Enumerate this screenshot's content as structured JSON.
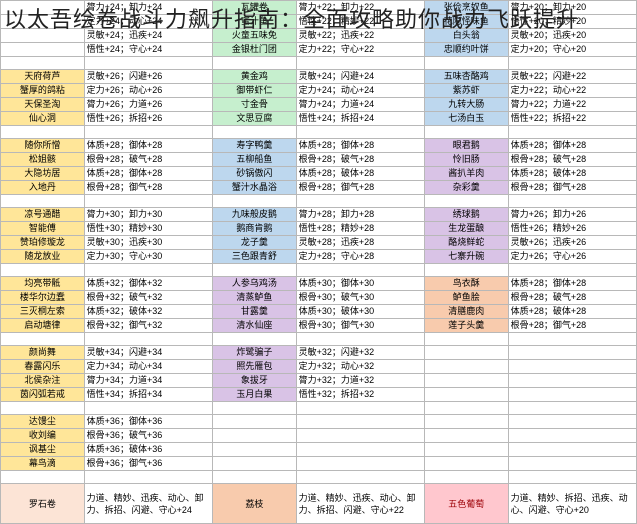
{
  "title": "以太吾绘卷战斗力飙升指南：全面攻略助你战力飞跃提升",
  "colors": {
    "yellow_label": "#ffe699",
    "green_dish": "#c6efce",
    "blue_dish": "#bdd7ee",
    "purple_dish": "#d9c3e6",
    "orange_dish": "#f8cbad",
    "pink_label": "#fce4d6",
    "red_dish": "#ffc7ce",
    "border": "#b8b8b8"
  },
  "sections": {
    "g1": {
      "labels": [
        "",
        "",
        "",
        ""
      ],
      "stats1": [
        "膂力+24；卸力+24",
        "定力+24；动心+24",
        "灵敏+24；迅疾+24",
        "悟性+24；守心+24"
      ],
      "dishes1": [
        "瓦罐卷",
        "蜜汁鱼",
        "火童五味免",
        "金银杜门团"
      ],
      "stats2": [
        "膂力+22；卸力+22",
        "悟性+22；精妙+22",
        "灵敏+22；迅疾+22",
        "定力+22；守心+22"
      ],
      "dishes2": [
        "张俭烹奴鱼",
        "花隐怪味鱼",
        "白头翁",
        "忠顺约叶饼"
      ],
      "stats3": [
        "膂力+20；卸力+20",
        "悟性+20；精妙+20",
        "灵敏+20；迅疾+20",
        "定力+20；守心+20"
      ]
    },
    "g2": {
      "labels": [
        "天府荷芦",
        "蟹厚的鸽粘",
        "天保圣淘",
        "仙心洞"
      ],
      "stats1": [
        "灵敏+26；闪避+26",
        "定力+26；动心+26",
        "膂力+26；力道+26",
        "悟性+26；拆招+26"
      ],
      "dishes1": [
        "黄金鸡",
        "御带虾仁",
        "寸金骨",
        "文思豆腐"
      ],
      "stats2": [
        "灵敏+24；闪避+24",
        "定力+24；动心+24",
        "膂力+24；力道+24",
        "悟性+24；拆招+24"
      ],
      "dishes2": [
        "五味杏酪鸡",
        "紫苏虾",
        "九转大肠",
        "七汤白玉"
      ],
      "stats3": [
        "灵敏+22；闪避+22",
        "定力+22；动心+22",
        "膂力+22；力道+22",
        "悟性+22；拆招+22"
      ]
    },
    "g3": {
      "labels": [
        "随你所憎",
        "松姐骸",
        "大隐坊居",
        "入地丹"
      ],
      "stats1": [
        "体质+28；御体+28",
        "根骨+28；破气+28",
        "体质+28；御体+28",
        "根骨+28；御气+28"
      ],
      "dishes1": [
        "寿字鸭羹",
        "五柳船鱼",
        "砂锅傲闪",
        "蟹汁水晶浴"
      ],
      "stats2": [
        "体质+28；御体+28",
        "根骨+28；破气+28",
        "体质+28；破体+28",
        "根骨+28；御气+28"
      ],
      "dishes2": [
        "眼君鹅",
        "怜旧肠",
        "酱扒羊肉",
        "杂彩羹"
      ],
      "stats3": [
        "体质+28；御体+28",
        "根骨+28；破气+28",
        "体质+28；破体+28",
        "根骨+28；御气+28"
      ]
    },
    "g4": {
      "labels": [
        "凉号通醋",
        "智能傅",
        "赞珀修璇龙",
        "随龙放业"
      ],
      "stats1": [
        "膂力+30；卸力+30",
        "悟性+30；精妙+30",
        "灵敏+30；迅疾+30",
        "定力+30；守心+30"
      ],
      "dishes1": [
        "九味般皮鹅",
        "鹅商肯鹅",
        "龙子羹",
        "三色跟青舒"
      ],
      "stats2": [
        "膂力+28；卸力+28",
        "悟性+28；精妙+28",
        "灵敏+28；迅疾+28",
        "定力+28；守心+28"
      ],
      "dishes2": [
        "绣球鹅",
        "生龙蛋酿",
        "酪烧鲜蛇",
        "七寨升碗"
      ],
      "stats3": [
        "膂力+26；卸力+26",
        "悟性+26；精妙+26",
        "灵敏+26；迅疾+26",
        "定力+26；守心+26"
      ]
    },
    "g5": {
      "labels": [
        "均亮带骶",
        "楼华尔边蠢",
        "三灭桐左索",
        "启动塘律"
      ],
      "stats1": [
        "体质+32；御体+32",
        "根骨+32；破气+32",
        "体质+32；破体+32",
        "根骨+32；御气+32"
      ],
      "dishes1": [
        "人参乌鸡汤",
        "清蒸鲈鱼",
        "甘露羹",
        "清水仙座"
      ],
      "stats2": [
        "体质+30；御体+30",
        "根骨+30；破气+30",
        "体质+30；破体+30",
        "根骨+30；御气+30"
      ],
      "dishes2": [
        "鸟衣酥",
        "鲈鱼脍",
        "清膳鹿肉",
        "莲子头羹"
      ],
      "stats3": [
        "体质+28；御体+28",
        "根骨+28；破气+28",
        "体质+28；破体+28",
        "根骨+28；御气+28"
      ]
    },
    "g6": {
      "labels": [
        "颜尚舞",
        "春露闪乐",
        "北侯杂注",
        "茵闪弧若戒"
      ],
      "stats1": [
        "灵敏+34；闪避+34",
        "定力+34；动心+34",
        "膂力+34；力道+34",
        "悟性+34；拆招+34"
      ],
      "dishes1": [
        "炸鹭骗子",
        "照先雁包",
        "象拔牙",
        "玉月白果"
      ],
      "stats2": [
        "灵敏+32；闪避+32",
        "定力+32；动心+32",
        "膂力+32；力道+32",
        "悟性+32；拆招+32"
      ]
    },
    "g7": {
      "labels": [
        "达馒尘",
        "收刘编",
        "讽基尘",
        "幕鸟滴"
      ],
      "stats1": [
        "体质+36；御体+36",
        "根骨+36；破气+36",
        "体质+36；破体+36",
        "根骨+36；御气+36"
      ]
    },
    "g8": {
      "labels": [
        "罗石卷"
      ],
      "stats1": [
        "力道、精妙、迅疾、动心、卸力、拆招、闪避、守心+24"
      ],
      "dishes1": [
        "荔枝"
      ],
      "stats2": [
        "力道、精妙、迅疾、动心、卸力、拆招、闪避、守心+22"
      ],
      "dishes2": [
        "五色葡萄"
      ],
      "stats3": [
        "力道、精妙、拆招、迅疾、动心、闪避、守心+20"
      ]
    }
  }
}
